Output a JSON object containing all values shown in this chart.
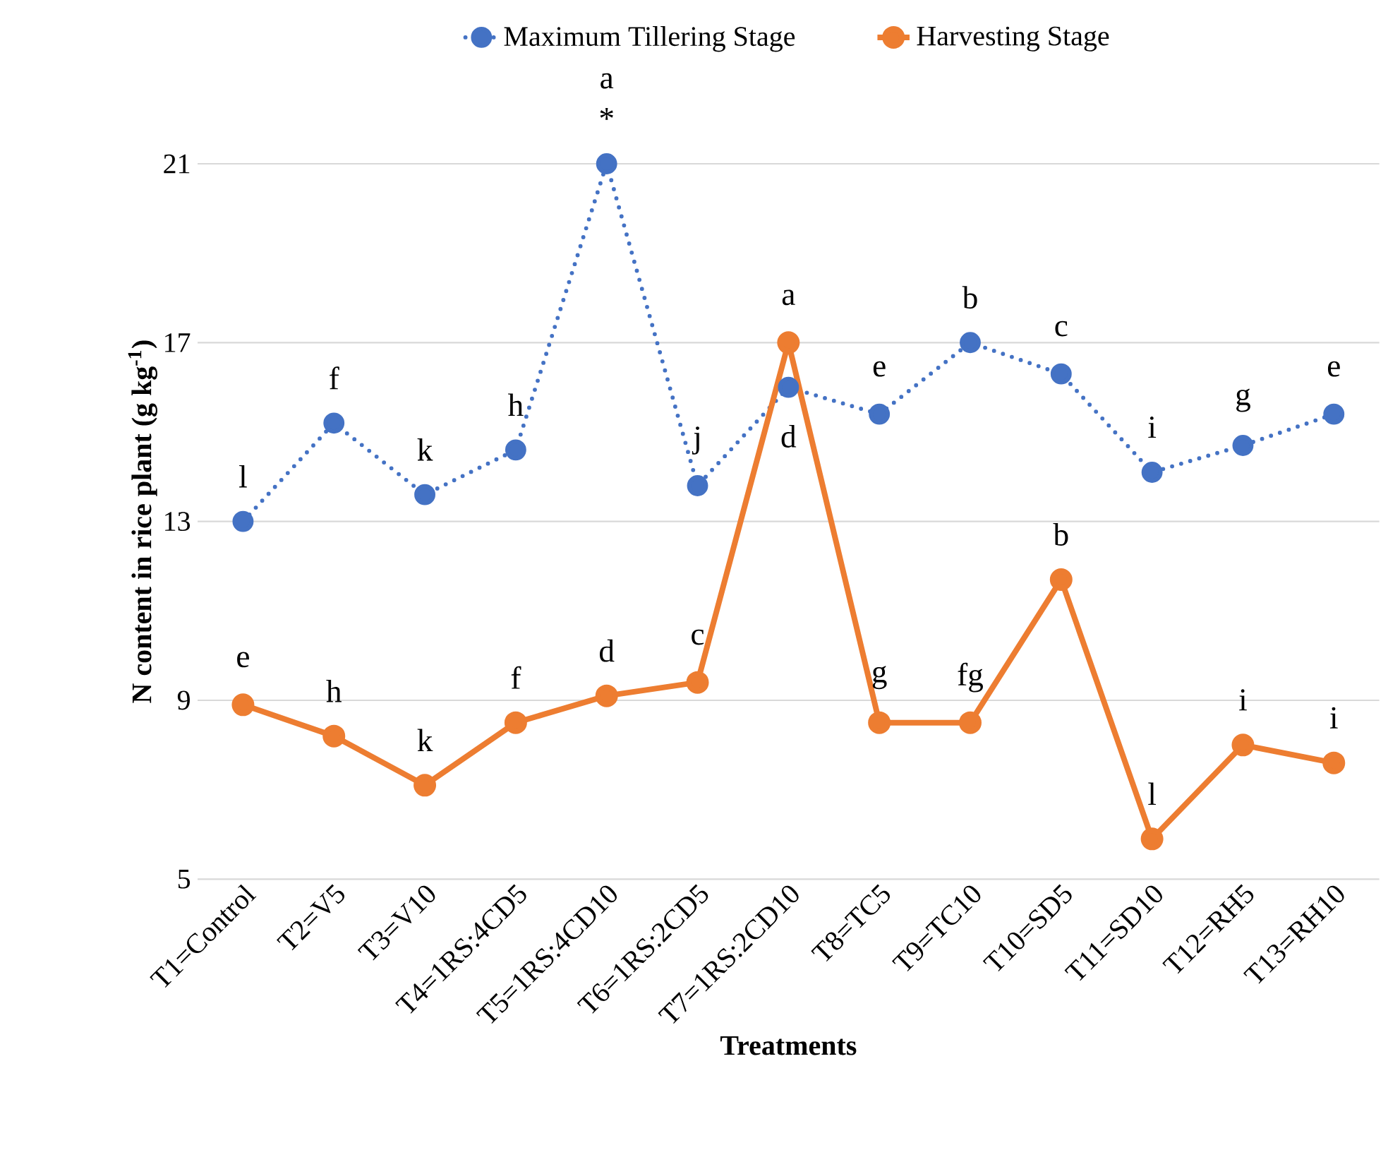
{
  "chart_data": {
    "type": "line",
    "xlabel": "Treatments",
    "ylabel": "N content in rice plant (g kg$^{-1}$)",
    "categories": [
      "T1=Control",
      "T2=V5",
      "T3=V10",
      "T4=1RS:4CD5",
      "T5=1RS:4CD10",
      "T6=1RS:2CD5",
      "T7=1RS:2CD10",
      "T8=TC5",
      "T9=TC10",
      "T10=SD5",
      "T11=SD10",
      "T12=RH5",
      "T13=RH10"
    ],
    "series": [
      {
        "name": "Maximum Tillering Stage",
        "color": "#4472c4",
        "line_style": "dotted",
        "values": [
          13.0,
          15.2,
          13.6,
          14.6,
          21.0,
          13.8,
          16.0,
          15.4,
          17.0,
          16.3,
          14.1,
          14.7,
          15.4
        ]
      },
      {
        "name": "Harvesting Stage",
        "color": "#ed7d31",
        "line_style": "solid",
        "values": [
          8.9,
          8.2,
          7.1,
          8.5,
          9.1,
          9.4,
          17.0,
          8.5,
          8.5,
          11.7,
          5.9,
          8.0,
          7.6
        ]
      }
    ],
    "ylim": [
      5,
      21
    ],
    "yticks": [
      5,
      9,
      13,
      17,
      21
    ],
    "grid": "y",
    "legend": "top",
    "marker": "circle",
    "annotations": [
      {
        "text": "l",
        "x": "T1=Control",
        "y": 13.0
      },
      {
        "text": "f",
        "x": "T2=V5",
        "y": 15.2
      },
      {
        "text": "k",
        "x": "T3=V10",
        "y": 13.6
      },
      {
        "text": "h",
        "x": "T4=1RS:4CD5",
        "y": 14.6
      },
      {
        "text": "a",
        "x": "T5=1RS:4CD10",
        "y": 21.0
      },
      {
        "text": "*",
        "x": "T5=1RS:4CD10",
        "y": 21.0
      },
      {
        "text": "j",
        "x": "T6=1RS:2CD5",
        "y": 13.8
      },
      {
        "text": "d",
        "x": "T7=1RS:2CD10",
        "y": 16.0
      },
      {
        "text": "e",
        "x": "T8=TC5",
        "y": 15.4
      },
      {
        "text": "b",
        "x": "T9=TC10",
        "y": 17.0
      },
      {
        "text": "c",
        "x": "T10=SD5",
        "y": 16.3
      },
      {
        "text": "i",
        "x": "T11=SD10",
        "y": 14.1
      },
      {
        "text": "g",
        "x": "T12=RH5",
        "y": 14.7
      },
      {
        "text": "e",
        "x": "T13=RH10",
        "y": 15.4
      },
      {
        "text": "e",
        "x": "T1=Control",
        "y": 8.9
      },
      {
        "text": "h",
        "x": "T2=V5",
        "y": 8.2
      },
      {
        "text": "k",
        "x": "T3=V10",
        "y": 7.1
      },
      {
        "text": "f",
        "x": "T4=1RS:4CD5",
        "y": 8.5
      },
      {
        "text": "d",
        "x": "T5=1RS:4CD10",
        "y": 9.1
      },
      {
        "text": "c",
        "x": "T6=1RS:2CD5",
        "y": 9.4
      },
      {
        "text": "a",
        "x": "T7=1RS:2CD10",
        "y": 17.0
      },
      {
        "text": "g",
        "x": "T8=TC5",
        "y": 8.5
      },
      {
        "text": "fg",
        "x": "T9=TC10",
        "y": 8.5
      },
      {
        "text": "b",
        "x": "T10=SD5",
        "y": 11.7
      },
      {
        "text": "l",
        "x": "T11=SD10",
        "y": 5.9
      },
      {
        "text": "i",
        "x": "T12=RH5",
        "y": 8.0
      },
      {
        "text": "i",
        "x": "T13=RH10",
        "y": 7.6
      }
    ]
  }
}
